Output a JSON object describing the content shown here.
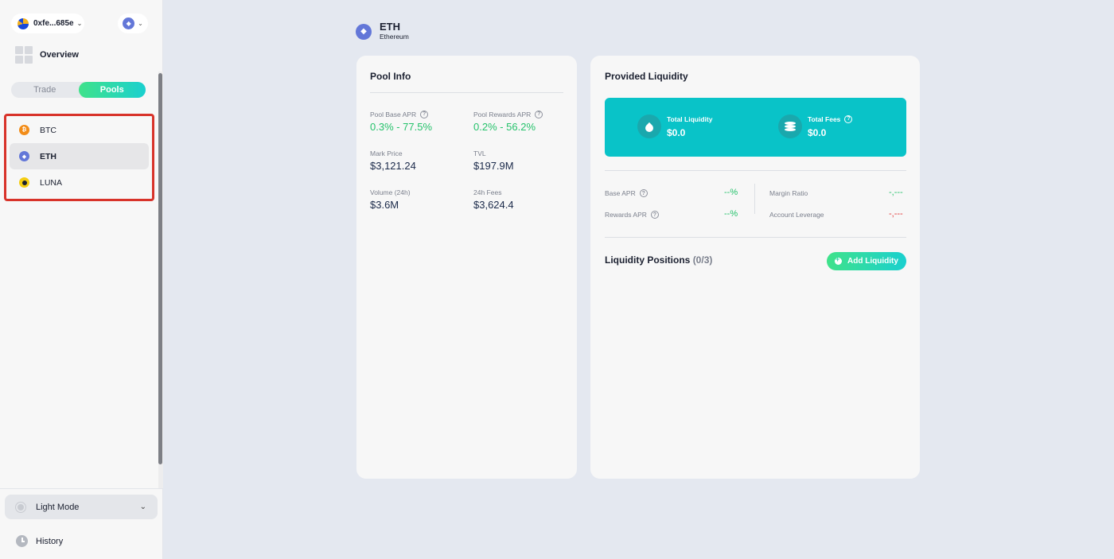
{
  "sidebar": {
    "wallet_address": "0xfe...685e",
    "network_icon": "ethereum-icon",
    "overview_label": "Overview",
    "tabs": [
      {
        "label": "Trade",
        "active": false
      },
      {
        "label": "Pools",
        "active": true
      }
    ],
    "markets": [
      {
        "symbol": "BTC",
        "icon": "bitcoin-icon",
        "active": false
      },
      {
        "symbol": "ETH",
        "icon": "ethereum-icon",
        "active": true
      },
      {
        "symbol": "LUNA",
        "icon": "luna-icon",
        "active": false
      }
    ],
    "theme_label": "Light Mode",
    "history_label": "History"
  },
  "pair": {
    "symbol": "ETH",
    "name": "Ethereum"
  },
  "pool_info": {
    "title": "Pool Info",
    "stats": [
      {
        "label": "Pool Base APR",
        "value": "0.3% - 77.5%",
        "help": true,
        "highlight": "green"
      },
      {
        "label": "Pool Rewards APR",
        "value": "0.2% - 56.2%",
        "help": true,
        "highlight": "green"
      },
      {
        "label": "Mark Price",
        "value": "$3,121.24",
        "help": false
      },
      {
        "label": "TVL",
        "value": "$197.9M",
        "help": false
      },
      {
        "label": "Volume (24h)",
        "value": "$3.6M",
        "help": false
      },
      {
        "label": "24h Fees",
        "value": "$3,624.4",
        "help": false
      }
    ]
  },
  "provided_liquidity": {
    "title": "Provided Liquidity",
    "total_liquidity_label": "Total Liquidity",
    "total_liquidity_value": "$0.0",
    "total_fees_label": "Total Fees",
    "total_fees_value": "$0.0",
    "base_apr_label": "Base APR",
    "base_apr_value": "--%",
    "rewards_apr_label": "Rewards APR",
    "rewards_apr_value": "--%",
    "margin_ratio_label": "Margin Ratio",
    "margin_ratio_value": "-,---",
    "account_leverage_label": "Account Leverage",
    "account_leverage_value": "-,---",
    "positions_label": "Liquidity Positions",
    "positions_count": "(0/3)",
    "add_liquidity_label": "Add Liquidity"
  },
  "colors": {
    "accent_green": "#25c26b",
    "accent_teal": "#09c3c8",
    "negative_red": "#e23a3a",
    "highlight_box": "#d8332a"
  }
}
